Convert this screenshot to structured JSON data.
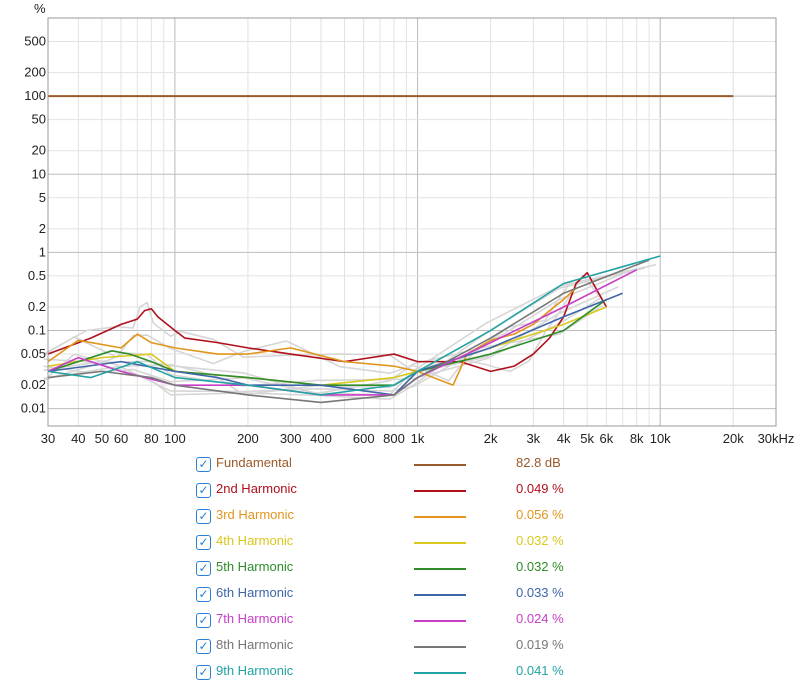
{
  "chart_data": {
    "type": "line",
    "xscale": "log",
    "yscale": "log",
    "xlim": [
      30,
      30000
    ],
    "ylim": [
      0.006,
      1000
    ],
    "yunit": "%",
    "xticks": [
      {
        "v": 30,
        "label": "30"
      },
      {
        "v": 40,
        "label": "40"
      },
      {
        "v": 50,
        "label": "50"
      },
      {
        "v": 60,
        "label": "60"
      },
      {
        "v": 80,
        "label": "80"
      },
      {
        "v": 100,
        "label": "100"
      },
      {
        "v": 200,
        "label": "200"
      },
      {
        "v": 300,
        "label": "300"
      },
      {
        "v": 400,
        "label": "400"
      },
      {
        "v": 600,
        "label": "600"
      },
      {
        "v": 800,
        "label": "800"
      },
      {
        "v": 1000,
        "label": "1k"
      },
      {
        "v": 2000,
        "label": "2k"
      },
      {
        "v": 3000,
        "label": "3k"
      },
      {
        "v": 4000,
        "label": "4k"
      },
      {
        "v": 5000,
        "label": "5k"
      },
      {
        "v": 6000,
        "label": "6k"
      },
      {
        "v": 8000,
        "label": "8k"
      },
      {
        "v": 10000,
        "label": "10k"
      },
      {
        "v": 20000,
        "label": "20k"
      },
      {
        "v": 30000,
        "label": "30kHz"
      }
    ],
    "yticks": [
      {
        "v": 500,
        "label": "500"
      },
      {
        "v": 200,
        "label": "200"
      },
      {
        "v": 100,
        "label": "100"
      },
      {
        "v": 50,
        "label": "50"
      },
      {
        "v": 20,
        "label": "20"
      },
      {
        "v": 10,
        "label": "10"
      },
      {
        "v": 5,
        "label": "5"
      },
      {
        "v": 2,
        "label": "2"
      },
      {
        "v": 1,
        "label": "1"
      },
      {
        "v": 0.5,
        "label": "0.5"
      },
      {
        "v": 0.2,
        "label": "0.2"
      },
      {
        "v": 0.1,
        "label": "0.1"
      },
      {
        "v": 0.05,
        "label": "0.05"
      },
      {
        "v": 0.02,
        "label": "0.02"
      },
      {
        "v": 0.01,
        "label": "0.01"
      }
    ],
    "grid": true,
    "series": [
      {
        "name": "Fundamental",
        "value": "82.8 dB",
        "color": "#9b5a2a",
        "x": [
          30,
          20000
        ],
        "y": [
          100,
          100
        ]
      },
      {
        "name": "2nd Harmonic",
        "value": "0.049 %",
        "color": "#b0101c",
        "x": [
          30,
          45,
          60,
          70,
          75,
          80,
          85,
          100,
          110,
          150,
          200,
          300,
          500,
          800,
          1000,
          1500,
          2000,
          2500,
          3000,
          3500,
          4000,
          4500,
          5000,
          6000
        ],
        "y": [
          0.05,
          0.08,
          0.12,
          0.14,
          0.18,
          0.19,
          0.15,
          0.1,
          0.08,
          0.07,
          0.06,
          0.05,
          0.04,
          0.05,
          0.04,
          0.04,
          0.03,
          0.035,
          0.05,
          0.08,
          0.15,
          0.4,
          0.55,
          0.2
        ]
      },
      {
        "name": "3rd Harmonic",
        "value": "0.056 %",
        "color": "#e0961c",
        "x": [
          30,
          40,
          60,
          70,
          80,
          100,
          150,
          200,
          300,
          500,
          800,
          1000,
          1400,
          1600,
          2000,
          2500,
          3000,
          3500,
          4000,
          4500
        ],
        "y": [
          0.04,
          0.075,
          0.06,
          0.09,
          0.07,
          0.06,
          0.05,
          0.05,
          0.06,
          0.04,
          0.035,
          0.03,
          0.02,
          0.05,
          0.075,
          0.09,
          0.12,
          0.18,
          0.25,
          0.35
        ]
      },
      {
        "name": "4th Harmonic",
        "value": "0.032 %",
        "color": "#d9c81e",
        "x": [
          30,
          50,
          80,
          100,
          200,
          400,
          800,
          1000,
          2000,
          4000,
          6000
        ],
        "y": [
          0.035,
          0.045,
          0.05,
          0.03,
          0.025,
          0.02,
          0.025,
          0.03,
          0.06,
          0.12,
          0.2
        ]
      },
      {
        "name": "5th Harmonic",
        "value": "0.032 %",
        "color": "#2f8c2a",
        "x": [
          30,
          55,
          65,
          80,
          100,
          200,
          400,
          800,
          1000,
          2000,
          4000,
          6000
        ],
        "y": [
          0.03,
          0.055,
          0.05,
          0.04,
          0.03,
          0.025,
          0.02,
          0.02,
          0.03,
          0.05,
          0.1,
          0.25
        ]
      },
      {
        "name": "6th Harmonic",
        "value": "0.033 %",
        "color": "#3e66a8",
        "x": [
          30,
          60,
          100,
          150,
          200,
          400,
          800,
          1000,
          2000,
          4000,
          7000
        ],
        "y": [
          0.03,
          0.04,
          0.03,
          0.025,
          0.02,
          0.02,
          0.015,
          0.03,
          0.06,
          0.15,
          0.3
        ]
      },
      {
        "name": "7th Harmonic",
        "value": "0.024 %",
        "color": "#c83ec8",
        "x": [
          30,
          40,
          60,
          100,
          200,
          400,
          800,
          1000,
          2000,
          4000,
          8000
        ],
        "y": [
          0.03,
          0.045,
          0.03,
          0.02,
          0.02,
          0.015,
          0.015,
          0.025,
          0.07,
          0.2,
          0.6
        ]
      },
      {
        "name": "8th Harmonic",
        "value": "0.019 %",
        "color": "#777777",
        "x": [
          30,
          50,
          80,
          100,
          200,
          400,
          800,
          1000,
          2000,
          4000,
          9000
        ],
        "y": [
          0.025,
          0.03,
          0.025,
          0.02,
          0.015,
          0.012,
          0.015,
          0.025,
          0.08,
          0.3,
          0.8
        ]
      },
      {
        "name": "9th Harmonic",
        "value": "0.041 %",
        "color": "#22a3a3",
        "x": [
          30,
          45,
          70,
          100,
          200,
          400,
          800,
          1000,
          2000,
          4000,
          10000
        ],
        "y": [
          0.03,
          0.025,
          0.04,
          0.025,
          0.02,
          0.015,
          0.02,
          0.03,
          0.1,
          0.4,
          0.9
        ]
      }
    ]
  },
  "legend": {
    "check_glyph": "✓",
    "entries": [
      {
        "name": "Fundamental",
        "value": "82.8 dB",
        "color": "#9b5a2a"
      },
      {
        "name": "2nd Harmonic",
        "value": "0.049 %",
        "color": "#b0101c"
      },
      {
        "name": "3rd Harmonic",
        "value": "0.056 %",
        "color": "#e0961c"
      },
      {
        "name": "4th Harmonic",
        "value": "0.032 %",
        "color": "#d9c81e"
      },
      {
        "name": "5th Harmonic",
        "value": "0.032 %",
        "color": "#2f8c2a"
      },
      {
        "name": "6th Harmonic",
        "value": "0.033 %",
        "color": "#3e66a8"
      },
      {
        "name": "7th Harmonic",
        "value": "0.024 %",
        "color": "#c83ec8"
      },
      {
        "name": "8th Harmonic",
        "value": "0.019 %",
        "color": "#777777"
      },
      {
        "name": "9th Harmonic",
        "value": "0.041 %",
        "color": "#22a3a3"
      }
    ]
  },
  "colors": {
    "grid_major": "#bdbdbd",
    "grid_minor": "#e2e2e2",
    "axis_frame": "#9a9a9a",
    "history_trace": "#d6d6d6"
  }
}
